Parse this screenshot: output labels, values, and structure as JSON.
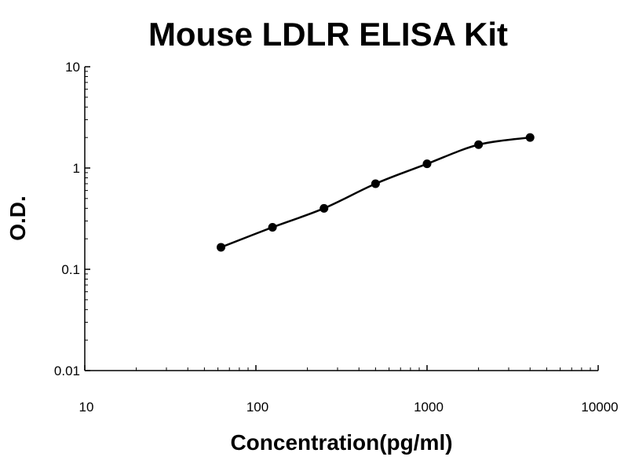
{
  "chart_data": {
    "type": "line",
    "title": "Mouse LDLR ELISA Kit",
    "xlabel": "Concentration(pg/ml)",
    "ylabel": "O.D.",
    "x_scale": "log",
    "y_scale": "log",
    "xlim": [
      10,
      10000
    ],
    "ylim": [
      0.01,
      10
    ],
    "x_ticks": [
      "10",
      "100",
      "1000",
      "10000"
    ],
    "y_ticks": [
      "0.01",
      "0.1",
      "1",
      "10"
    ],
    "grid": false,
    "legend": "none",
    "series": [
      {
        "x": [
          62.5,
          125,
          250,
          500,
          1000,
          2000,
          4000
        ],
        "y": [
          0.165,
          0.26,
          0.4,
          0.7,
          1.1,
          1.7,
          2.0
        ]
      }
    ],
    "colors": {
      "line": "#000000",
      "marker": "#000000",
      "axis": "#000000"
    }
  }
}
